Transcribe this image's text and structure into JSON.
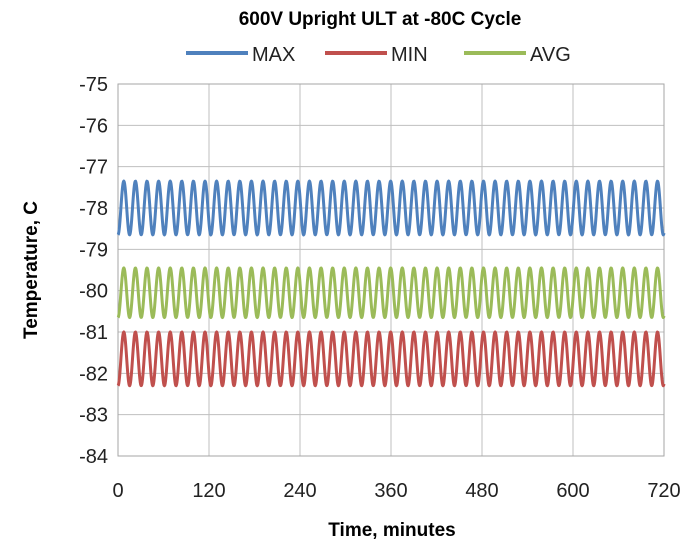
{
  "chart_data": {
    "type": "line",
    "title": "600V Upright ULT at -80C Cycle",
    "xlabel": "Time, minutes",
    "ylabel": "Temperature, C",
    "xlim": [
      0,
      720
    ],
    "ylim": [
      -84,
      -75
    ],
    "x_ticks": [
      0,
      120,
      240,
      360,
      480,
      600,
      720
    ],
    "y_ticks": [
      -75,
      -76,
      -77,
      -78,
      -79,
      -80,
      -81,
      -82,
      -83,
      -84
    ],
    "x_tick_labels": [
      "0",
      "120",
      "240",
      "360",
      "480",
      "600",
      "720"
    ],
    "y_tick_labels": [
      "-75",
      "-76",
      "-77",
      "-78",
      "-79",
      "-80",
      "-81",
      "-82",
      "-83",
      "-84"
    ],
    "grid": true,
    "legend_position": "top",
    "series": [
      {
        "name": "MAX",
        "color": "#4f81bd",
        "waveform": {
          "center": -78.0,
          "amplitude": 0.65,
          "period_minutes": 15.3,
          "cycles": 47
        }
      },
      {
        "name": "MIN",
        "color": "#c0504d",
        "waveform": {
          "center": -81.65,
          "amplitude": 0.65,
          "period_minutes": 15.3,
          "cycles": 47
        }
      },
      {
        "name": "AVG",
        "color": "#9bbb59",
        "waveform": {
          "center": -80.05,
          "amplitude": 0.6,
          "period_minutes": 15.3,
          "cycles": 47
        }
      }
    ]
  }
}
